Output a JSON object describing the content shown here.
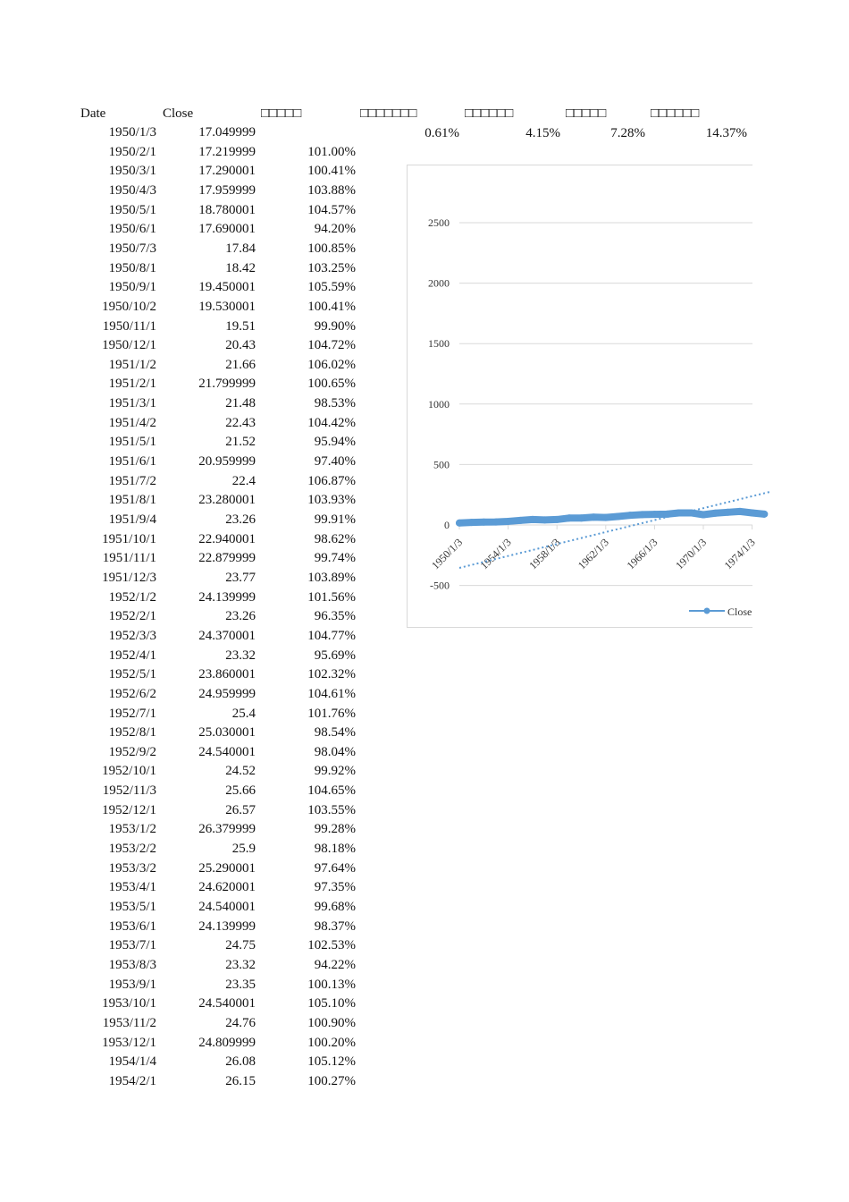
{
  "headers": [
    "Date",
    "Close",
    "□□□□□",
    "□□□□□□□",
    "□□□□□□",
    "□□□□□",
    "□□□□□□"
  ],
  "summary_row": [
    "0.61%",
    "4.15%",
    "7.28%",
    "14.37%"
  ],
  "rows": [
    [
      "1950/1/3",
      "17.049999",
      ""
    ],
    [
      "1950/2/1",
      "17.219999",
      "101.00%"
    ],
    [
      "1950/3/1",
      "17.290001",
      "100.41%"
    ],
    [
      "1950/4/3",
      "17.959999",
      "103.88%"
    ],
    [
      "1950/5/1",
      "18.780001",
      "104.57%"
    ],
    [
      "1950/6/1",
      "17.690001",
      "94.20%"
    ],
    [
      "1950/7/3",
      "17.84",
      "100.85%"
    ],
    [
      "1950/8/1",
      "18.42",
      "103.25%"
    ],
    [
      "1950/9/1",
      "19.450001",
      "105.59%"
    ],
    [
      "1950/10/2",
      "19.530001",
      "100.41%"
    ],
    [
      "1950/11/1",
      "19.51",
      "99.90%"
    ],
    [
      "1950/12/1",
      "20.43",
      "104.72%"
    ],
    [
      "1951/1/2",
      "21.66",
      "106.02%"
    ],
    [
      "1951/2/1",
      "21.799999",
      "100.65%"
    ],
    [
      "1951/3/1",
      "21.48",
      "98.53%"
    ],
    [
      "1951/4/2",
      "22.43",
      "104.42%"
    ],
    [
      "1951/5/1",
      "21.52",
      "95.94%"
    ],
    [
      "1951/6/1",
      "20.959999",
      "97.40%"
    ],
    [
      "1951/7/2",
      "22.4",
      "106.87%"
    ],
    [
      "1951/8/1",
      "23.280001",
      "103.93%"
    ],
    [
      "1951/9/4",
      "23.26",
      "99.91%"
    ],
    [
      "1951/10/1",
      "22.940001",
      "98.62%"
    ],
    [
      "1951/11/1",
      "22.879999",
      "99.74%"
    ],
    [
      "1951/12/3",
      "23.77",
      "103.89%"
    ],
    [
      "1952/1/2",
      "24.139999",
      "101.56%"
    ],
    [
      "1952/2/1",
      "23.26",
      "96.35%"
    ],
    [
      "1952/3/3",
      "24.370001",
      "104.77%"
    ],
    [
      "1952/4/1",
      "23.32",
      "95.69%"
    ],
    [
      "1952/5/1",
      "23.860001",
      "102.32%"
    ],
    [
      "1952/6/2",
      "24.959999",
      "104.61%"
    ],
    [
      "1952/7/1",
      "25.4",
      "101.76%"
    ],
    [
      "1952/8/1",
      "25.030001",
      "98.54%"
    ],
    [
      "1952/9/2",
      "24.540001",
      "98.04%"
    ],
    [
      "1952/10/1",
      "24.52",
      "99.92%"
    ],
    [
      "1952/11/3",
      "25.66",
      "104.65%"
    ],
    [
      "1952/12/1",
      "26.57",
      "103.55%"
    ],
    [
      "1953/1/2",
      "26.379999",
      "99.28%"
    ],
    [
      "1953/2/2",
      "25.9",
      "98.18%"
    ],
    [
      "1953/3/2",
      "25.290001",
      "97.64%"
    ],
    [
      "1953/4/1",
      "24.620001",
      "97.35%"
    ],
    [
      "1953/5/1",
      "24.540001",
      "99.68%"
    ],
    [
      "1953/6/1",
      "24.139999",
      "98.37%"
    ],
    [
      "1953/7/1",
      "24.75",
      "102.53%"
    ],
    [
      "1953/8/3",
      "23.32",
      "94.22%"
    ],
    [
      "1953/9/1",
      "23.35",
      "100.13%"
    ],
    [
      "1953/10/1",
      "24.540001",
      "105.10%"
    ],
    [
      "1953/11/2",
      "24.76",
      "100.90%"
    ],
    [
      "1953/12/1",
      "24.809999",
      "100.20%"
    ],
    [
      "1954/1/4",
      "26.08",
      "105.12%"
    ],
    [
      "1954/2/1",
      "26.15",
      "100.27%"
    ]
  ],
  "chart_data": {
    "type": "line",
    "series": [
      {
        "name": "Close",
        "x": [
          1950,
          1951,
          1952,
          1953,
          1954,
          1955,
          1956,
          1957,
          1958,
          1959,
          1960,
          1961,
          1962,
          1963,
          1964,
          1965,
          1966,
          1967,
          1968,
          1969,
          1970,
          1971,
          1972,
          1973,
          1974,
          1975
        ],
        "values": [
          17,
          21,
          24,
          25,
          30,
          38,
          45,
          42,
          45,
          57,
          57,
          65,
          62,
          70,
          80,
          86,
          88,
          90,
          100,
          100,
          85,
          98,
          105,
          112,
          100,
          90
        ]
      }
    ],
    "trendline": {
      "style": "linear-dotted",
      "x": [
        1950,
        1975.5
      ],
      "values": [
        -355,
        275
      ]
    },
    "categories": [
      "1950/1/3",
      "1954/1/3",
      "1958/1/3",
      "1962/1/3",
      "1966/1/3",
      "1970/1/3",
      "1974/1/3"
    ],
    "yticks": [
      "2500",
      "2000",
      "1500",
      "1000",
      "500",
      "0",
      "-500"
    ],
    "ylim": [
      -500,
      2500
    ],
    "grid": true,
    "legend": "bottom-right",
    "color": "#5b9bd5"
  }
}
